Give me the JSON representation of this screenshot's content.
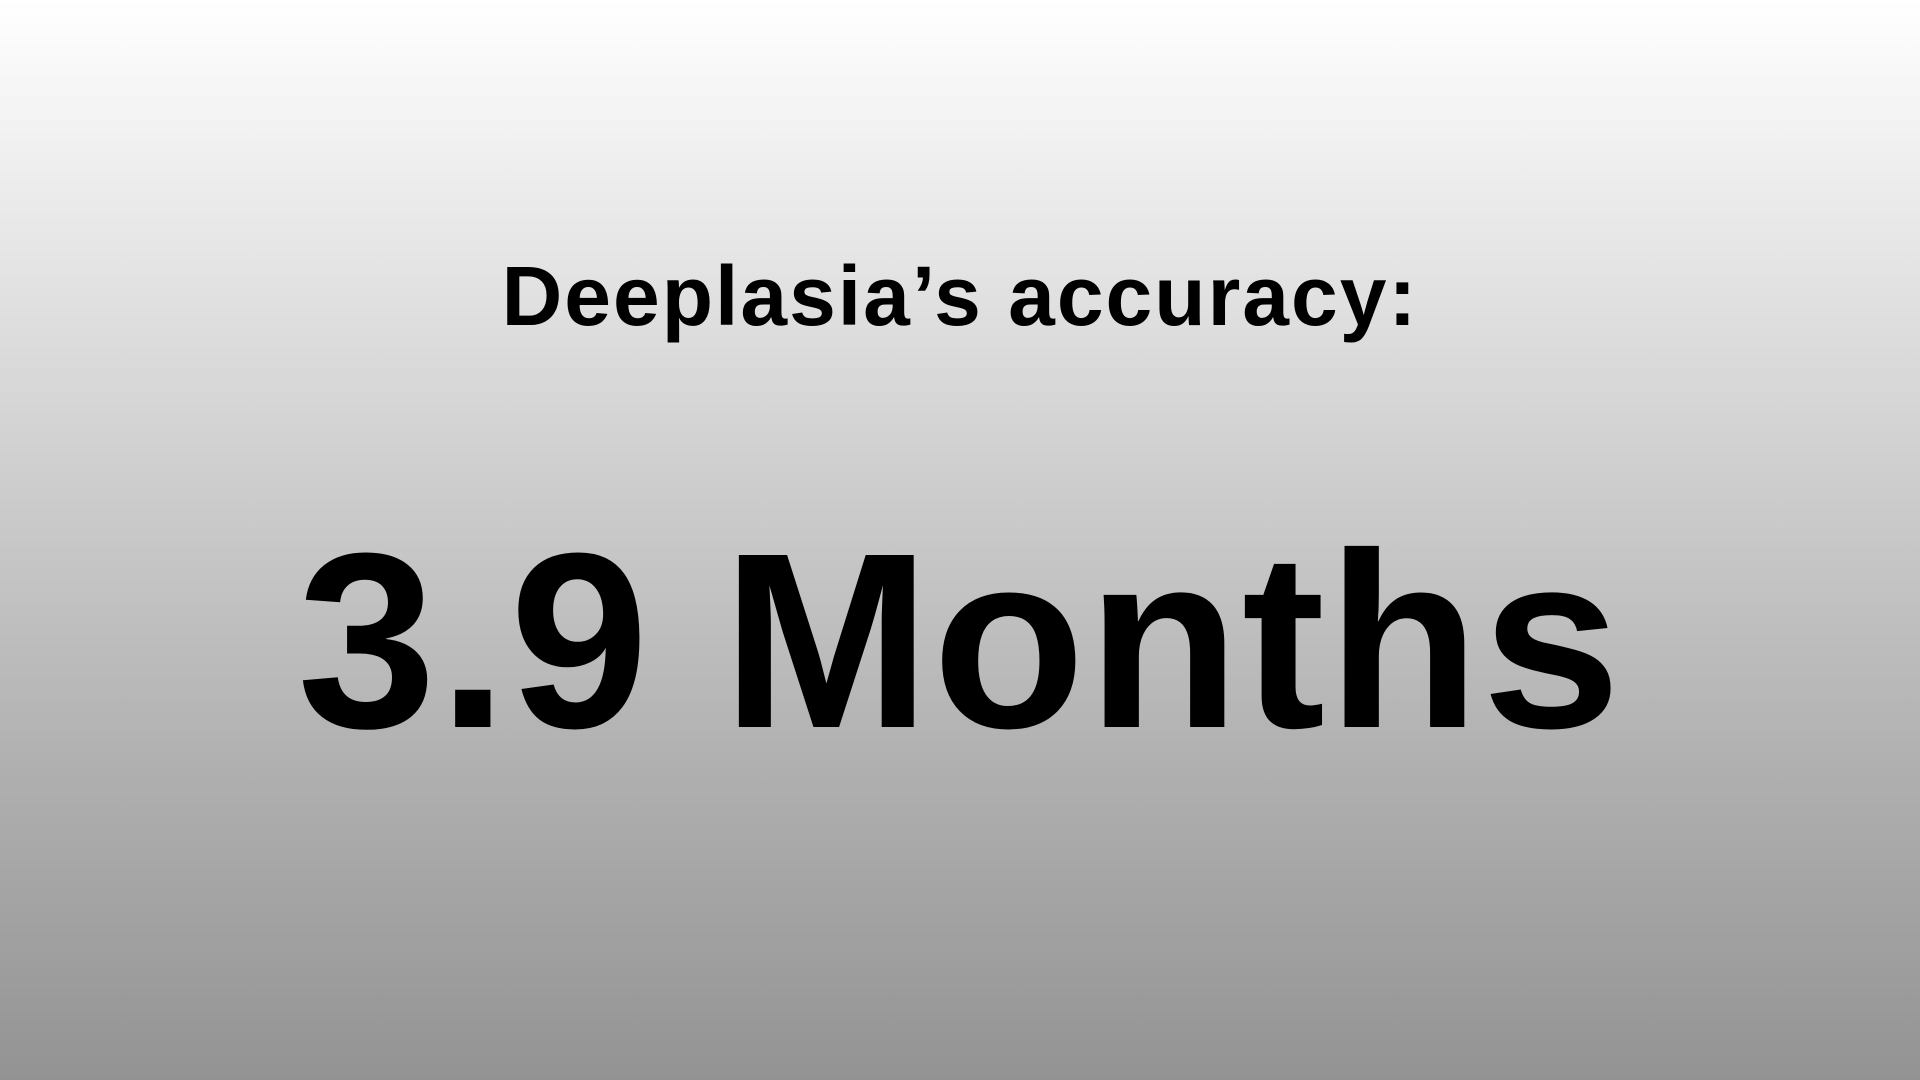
{
  "slide": {
    "heading": "Deeplasia’s accuracy:",
    "stat": "3.9 Months"
  }
}
